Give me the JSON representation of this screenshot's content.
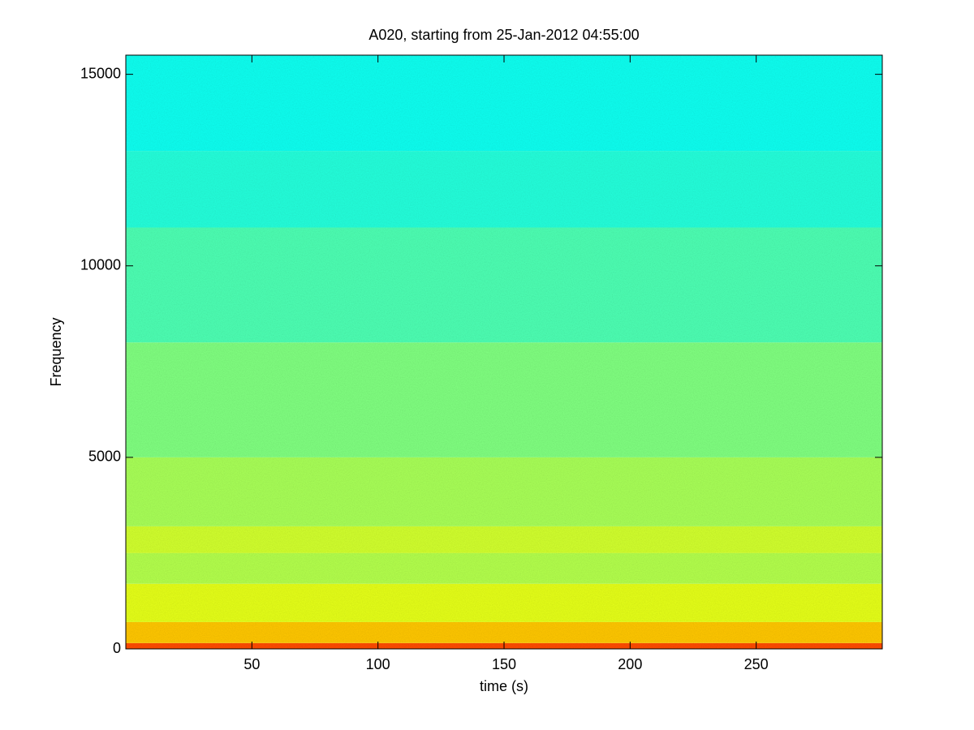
{
  "chart_data": {
    "type": "heatmap",
    "title": "A020, starting from 25-Jan-2012 04:55:00",
    "xlabel": "time (s)",
    "ylabel": "Frequency",
    "xlim": [
      0,
      300
    ],
    "xticks": [
      50,
      100,
      150,
      200,
      250
    ],
    "ylim": [
      0,
      15500
    ],
    "yticks": [
      0,
      5000,
      10000,
      15000
    ],
    "y_bins": [
      0,
      150,
      700,
      1700,
      2500,
      3200,
      5000,
      8000,
      11000,
      13000,
      15500
    ],
    "values": [
      0.8,
      0.68,
      0.6,
      0.55,
      0.58,
      0.54,
      0.5,
      0.45,
      0.41,
      0.39
    ],
    "colormap": "jet"
  }
}
